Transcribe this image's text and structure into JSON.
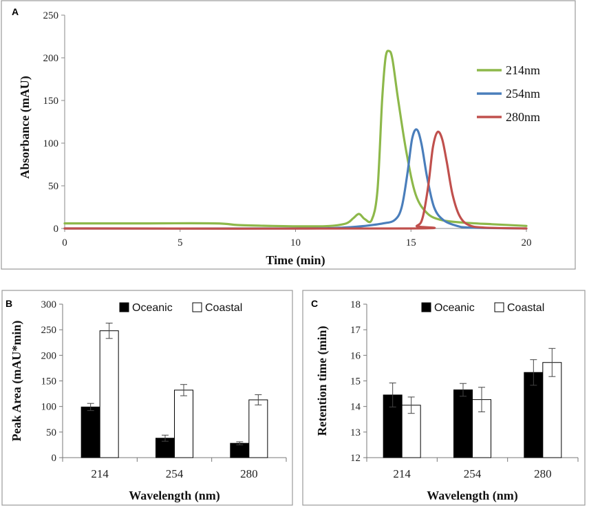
{
  "chart_data": [
    {
      "panel": "A",
      "type": "line",
      "xlabel": "Time (min)",
      "ylabel": "Absorbance (mAU)",
      "xlim": [
        0,
        20
      ],
      "ylim": [
        0,
        250
      ],
      "xticks": [
        0,
        5,
        10,
        15,
        20
      ],
      "yticks": [
        0,
        50,
        100,
        150,
        200,
        250
      ],
      "legend_position": "right",
      "series": [
        {
          "name": "214nm",
          "color": "#8db84a",
          "x": [
            0,
            3,
            6.5,
            7.5,
            9,
            10.5,
            11.5,
            12.2,
            12.5,
            12.75,
            13.0,
            13.3,
            13.55,
            13.75,
            13.9,
            14.05,
            14.2,
            14.45,
            14.8,
            15.2,
            15.7,
            16.3,
            17.2,
            18.5,
            20
          ],
          "y": [
            6,
            6,
            6,
            4,
            3,
            2.5,
            3,
            6,
            12,
            17,
            11,
            10,
            45,
            150,
            200,
            208,
            198,
            150,
            90,
            40,
            18,
            10,
            7,
            5,
            3
          ]
        },
        {
          "name": "254nm",
          "color": "#4a7ebb",
          "x": [
            0,
            10,
            12,
            13.0,
            13.8,
            14.3,
            14.6,
            14.85,
            15.05,
            15.25,
            15.45,
            15.7,
            16.0,
            16.4,
            17.0,
            17.6,
            20
          ],
          "y": [
            0,
            0,
            1,
            3,
            6,
            10,
            25,
            65,
            105,
            116,
            100,
            60,
            25,
            10,
            3,
            1,
            0
          ]
        },
        {
          "name": "280nm",
          "color": "#c0504d",
          "x": [
            0,
            14.8,
            15.25,
            15.5,
            15.75,
            15.95,
            16.15,
            16.35,
            16.55,
            16.8,
            17.1,
            17.5,
            18.2,
            20
          ],
          "y": [
            0,
            0,
            3,
            12,
            50,
            95,
            113,
            105,
            78,
            40,
            15,
            4,
            1,
            0
          ]
        }
      ]
    },
    {
      "panel": "B",
      "type": "bar",
      "xlabel": "Wavelength (nm)",
      "ylabel": "Peak Area (mAU*min)",
      "ylim": [
        0,
        300
      ],
      "yticks": [
        0,
        50,
        100,
        150,
        200,
        250,
        300
      ],
      "categories": [
        "214",
        "254",
        "280"
      ],
      "legend_position": "top",
      "series": [
        {
          "name": "Oceanic",
          "fill": "#000000",
          "values": [
            99,
            38,
            28
          ],
          "errors": [
            7,
            6,
            3
          ]
        },
        {
          "name": "Coastal",
          "fill": "#ffffff",
          "values": [
            248,
            132,
            113
          ],
          "errors": [
            15,
            11,
            10
          ]
        }
      ]
    },
    {
      "panel": "C",
      "type": "bar",
      "xlabel": "Wavelength (nm)",
      "ylabel": "Retention time (min)",
      "ylim": [
        12,
        18
      ],
      "yticks": [
        12,
        13,
        14,
        15,
        16,
        17,
        18
      ],
      "categories": [
        "214",
        "254",
        "280"
      ],
      "legend_position": "top",
      "series": [
        {
          "name": "Oceanic",
          "fill": "#000000",
          "values": [
            14.45,
            14.65,
            15.33
          ],
          "errors": [
            0.47,
            0.25,
            0.5
          ]
        },
        {
          "name": "Coastal",
          "fill": "#ffffff",
          "values": [
            14.05,
            14.27,
            15.72
          ],
          "errors": [
            0.32,
            0.48,
            0.55
          ]
        }
      ]
    }
  ]
}
